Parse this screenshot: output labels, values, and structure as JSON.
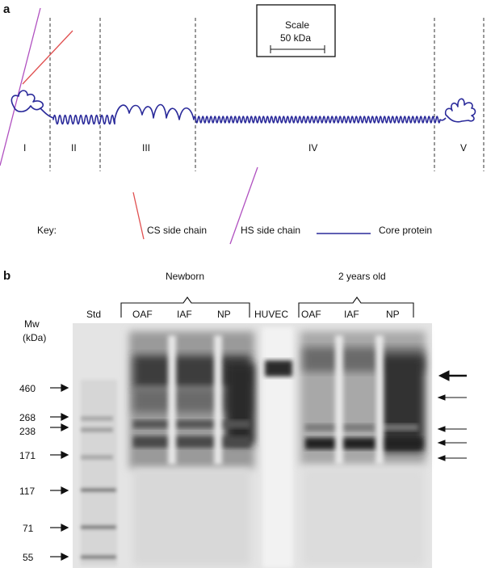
{
  "panel_a": {
    "letter": "a",
    "scale": {
      "title": "Scale",
      "value": "50 kDa"
    },
    "domains": [
      "I",
      "II",
      "III",
      "IV",
      "V"
    ],
    "key": {
      "label": "Key:",
      "cs": "CS side chain",
      "hs": "HS side chain",
      "core": "Core protein"
    }
  },
  "panel_b": {
    "letter": "b",
    "group_newborn": "Newborn",
    "group_2y": "2 years old",
    "lanes": {
      "std": "Std",
      "nb_oaf": "OAF",
      "nb_iaf": "IAF",
      "nb_np": "NP",
      "huvec": "HUVEC",
      "y2_oaf": "OAF",
      "y2_iaf": "IAF",
      "y2_np": "NP"
    },
    "mw_title": "Mw",
    "mw_unit": "(kDa)",
    "markers": [
      "460",
      "268",
      "238",
      "171",
      "117",
      "71",
      "55"
    ]
  },
  "colors": {
    "cs_side_chain": "#e05050",
    "hs_side_chain": "#b050c0",
    "core_protein": "#2a2a9a"
  }
}
